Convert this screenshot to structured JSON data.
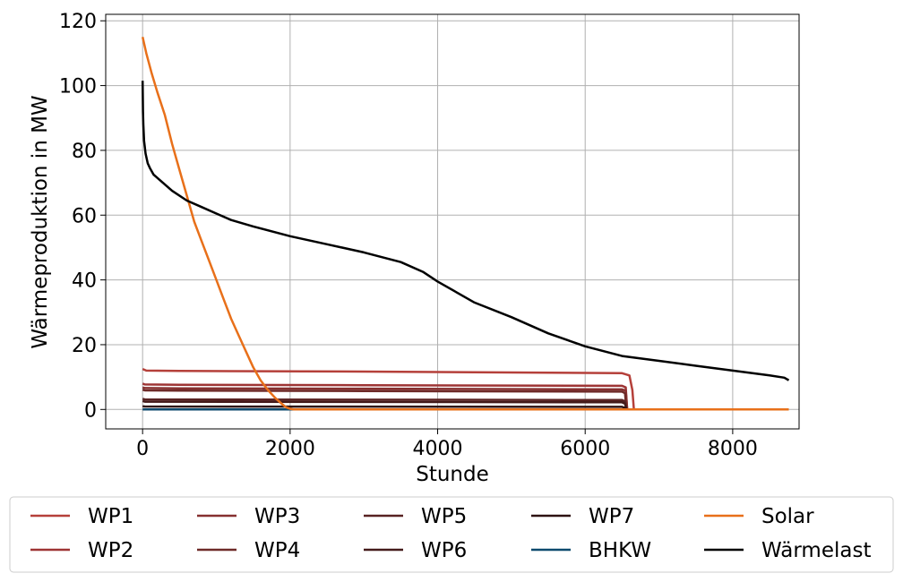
{
  "chart_data": {
    "type": "line",
    "xlabel": "Stunde",
    "ylabel": "Wärmeproduktion in MW",
    "xlim": [
      -500,
      8900
    ],
    "ylim": [
      -6,
      122
    ],
    "x_ticks": [
      0,
      2000,
      4000,
      6000,
      8000
    ],
    "x_tick_labels": [
      "0",
      "2000",
      "4000",
      "6000",
      "8000"
    ],
    "y_ticks": [
      0,
      20,
      40,
      60,
      80,
      100,
      120
    ],
    "y_tick_labels": [
      "0",
      "20",
      "40",
      "60",
      "80",
      "100",
      "120"
    ],
    "grid": true,
    "legend_placement": "below plot, 5 columns",
    "series": [
      {
        "name": "WP1",
        "color": "#b5403a",
        "x": [
          0,
          50,
          500,
          3000,
          6500,
          6600,
          6640,
          6660,
          8760
        ],
        "y": [
          12.5,
          12.0,
          11.9,
          11.7,
          11.2,
          10.5,
          6.0,
          0,
          0
        ]
      },
      {
        "name": "WP2",
        "color": "#9e3434",
        "x": [
          0,
          30,
          500,
          3000,
          6500,
          6550,
          6570,
          8760
        ],
        "y": [
          8.0,
          7.7,
          7.6,
          7.5,
          7.3,
          6.8,
          0,
          0
        ]
      },
      {
        "name": "WP3",
        "color": "#863030",
        "x": [
          0,
          30,
          500,
          3000,
          6500,
          6550,
          6570,
          8760
        ],
        "y": [
          6.8,
          6.6,
          6.5,
          6.4,
          6.2,
          5.8,
          0,
          0
        ]
      },
      {
        "name": "WP4",
        "color": "#6e2a28",
        "x": [
          0,
          30,
          500,
          3000,
          6500,
          6540,
          6560,
          8760
        ],
        "y": [
          6.1,
          5.9,
          5.8,
          5.7,
          5.5,
          5.0,
          0,
          0
        ]
      },
      {
        "name": "WP5",
        "color": "#582222",
        "x": [
          0,
          30,
          6500,
          6540,
          6560,
          8760
        ],
        "y": [
          3.3,
          3.1,
          2.9,
          2.5,
          0,
          0
        ]
      },
      {
        "name": "WP6",
        "color": "#441a1a",
        "x": [
          0,
          30,
          6500,
          6540,
          6560,
          8760
        ],
        "y": [
          2.6,
          2.4,
          2.2,
          1.8,
          0,
          0
        ]
      },
      {
        "name": "WP7",
        "color": "#2e1212",
        "x": [
          0,
          30,
          6500,
          6540,
          6560,
          8760
        ],
        "y": [
          1.0,
          0.9,
          0.8,
          0.5,
          0,
          0
        ]
      },
      {
        "name": "BHKW",
        "color": "#0d4a6e",
        "x": [
          0,
          8760
        ],
        "y": [
          0,
          0
        ]
      },
      {
        "name": "Solar",
        "color": "#e8701a",
        "x": [
          0,
          50,
          120,
          200,
          300,
          400,
          500,
          600,
          700,
          800,
          900,
          1000,
          1100,
          1200,
          1300,
          1400,
          1500,
          1600,
          1700,
          1800,
          1900,
          1950,
          2000,
          2050,
          8760
        ],
        "y": [
          115,
          110,
          104,
          98,
          91,
          82,
          74,
          66,
          58,
          52,
          46,
          40,
          34,
          28,
          23,
          18,
          13,
          9,
          6,
          3.5,
          1.5,
          0.6,
          0.2,
          0,
          0
        ]
      },
      {
        "name": "Wärmelast",
        "color": "#000000",
        "x": [
          0,
          5,
          10,
          20,
          40,
          70,
          100,
          150,
          250,
          400,
          600,
          800,
          1000,
          1200,
          1500,
          2000,
          2500,
          3000,
          3500,
          3800,
          4000,
          4500,
          5000,
          5500,
          6000,
          6500,
          7000,
          7500,
          8000,
          8500,
          8700,
          8760
        ],
        "y": [
          101.5,
          92,
          88,
          83,
          79,
          76,
          74.5,
          72.5,
          70.5,
          67.5,
          64.5,
          62.5,
          60.5,
          58.5,
          56.5,
          53.5,
          51,
          48.5,
          45.5,
          42.5,
          39.5,
          33,
          28.5,
          23.5,
          19.5,
          16.5,
          15,
          13.5,
          12,
          10.5,
          9.8,
          9
        ]
      }
    ]
  }
}
